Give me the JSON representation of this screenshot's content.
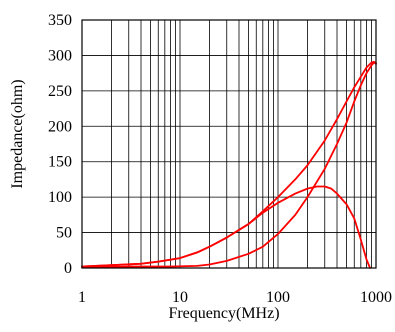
{
  "chart_data": {
    "type": "line",
    "title": "",
    "xlabel": "Frequency(MHz)",
    "ylabel": "Impedance(ohm)",
    "xscale": "log",
    "xlim": [
      1,
      1000
    ],
    "ylim": [
      0,
      350
    ],
    "grid": "on",
    "x_ticks": [
      {
        "value": 1,
        "label": "1"
      },
      {
        "value": 10,
        "label": "10"
      },
      {
        "value": 100,
        "label": "100"
      },
      {
        "value": 1000,
        "label": "1000"
      }
    ],
    "y_ticks": [
      {
        "value": 0,
        "label": "0"
      },
      {
        "value": 50,
        "label": "50"
      },
      {
        "value": 100,
        "label": "100"
      },
      {
        "value": 150,
        "label": "150"
      },
      {
        "value": 200,
        "label": "200"
      },
      {
        "value": 250,
        "label": "250"
      },
      {
        "value": 300,
        "label": "300"
      },
      {
        "value": 350,
        "label": "350"
      }
    ],
    "line_color": "#ff0000",
    "series": [
      {
        "points": [
          [
            1,
            2
          ],
          [
            2,
            4
          ],
          [
            4,
            6
          ],
          [
            6,
            9
          ],
          [
            10,
            14
          ],
          [
            15,
            22
          ],
          [
            20,
            30
          ],
          [
            30,
            43
          ],
          [
            50,
            62
          ],
          [
            70,
            80
          ],
          [
            100,
            100
          ],
          [
            150,
            125
          ],
          [
            200,
            145
          ],
          [
            300,
            180
          ],
          [
            400,
            210
          ],
          [
            500,
            235
          ],
          [
            600,
            255
          ],
          [
            700,
            270
          ],
          [
            800,
            283
          ],
          [
            900,
            290
          ],
          [
            950,
            291
          ],
          [
            1000,
            289
          ]
        ]
      },
      {
        "points": [
          [
            1,
            1
          ],
          [
            3,
            2
          ],
          [
            8,
            2
          ],
          [
            15,
            3
          ],
          [
            20,
            5
          ],
          [
            30,
            10
          ],
          [
            50,
            20
          ],
          [
            70,
            30
          ],
          [
            100,
            48
          ],
          [
            150,
            75
          ],
          [
            200,
            100
          ],
          [
            300,
            140
          ],
          [
            400,
            175
          ],
          [
            500,
            205
          ],
          [
            600,
            235
          ],
          [
            700,
            258
          ],
          [
            800,
            275
          ],
          [
            900,
            286
          ],
          [
            950,
            290
          ],
          [
            1000,
            288
          ]
        ]
      },
      {
        "points": [
          [
            1,
            2
          ],
          [
            2,
            4
          ],
          [
            4,
            6
          ],
          [
            6,
            9
          ],
          [
            10,
            14
          ],
          [
            15,
            22
          ],
          [
            20,
            30
          ],
          [
            30,
            43
          ],
          [
            50,
            62
          ],
          [
            70,
            78
          ],
          [
            100,
            92
          ],
          [
            150,
            105
          ],
          [
            200,
            112
          ],
          [
            250,
            115
          ],
          [
            300,
            115
          ],
          [
            350,
            112
          ],
          [
            400,
            105
          ],
          [
            500,
            90
          ],
          [
            600,
            70
          ],
          [
            700,
            40
          ],
          [
            800,
            12
          ],
          [
            870,
            0
          ]
        ]
      }
    ]
  }
}
